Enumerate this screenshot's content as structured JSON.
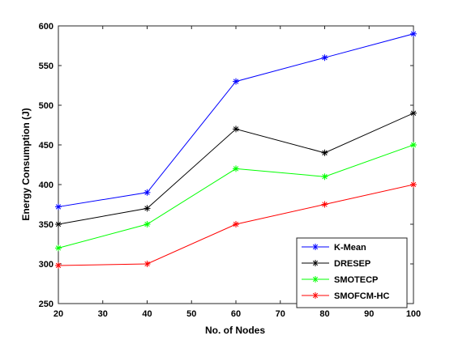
{
  "chart_data": {
    "type": "line",
    "xlabel": "No. of Nodes",
    "ylabel": "Energy Consumption (J)",
    "xlim": [
      20,
      100
    ],
    "ylim": [
      250,
      600
    ],
    "xticks": [
      20,
      30,
      40,
      50,
      60,
      70,
      80,
      90,
      100
    ],
    "yticks": [
      250,
      300,
      350,
      400,
      450,
      500,
      550,
      600
    ],
    "grid": false,
    "legend_position": "bottom-right",
    "x": [
      20,
      40,
      60,
      80,
      100
    ],
    "series": [
      {
        "name": "K-Mean",
        "color": "#0000ff",
        "values": [
          372,
          390,
          530,
          560,
          590
        ]
      },
      {
        "name": "DRESEP",
        "color": "#000000",
        "values": [
          350,
          370,
          470,
          440,
          490
        ]
      },
      {
        "name": "SMOTECP",
        "color": "#00ff00",
        "values": [
          320,
          350,
          420,
          410,
          450
        ]
      },
      {
        "name": "SMOFCM-HC",
        "color": "#ff0000",
        "values": [
          298,
          300,
          350,
          375,
          400
        ]
      }
    ],
    "marker": "asterisk-icon"
  }
}
